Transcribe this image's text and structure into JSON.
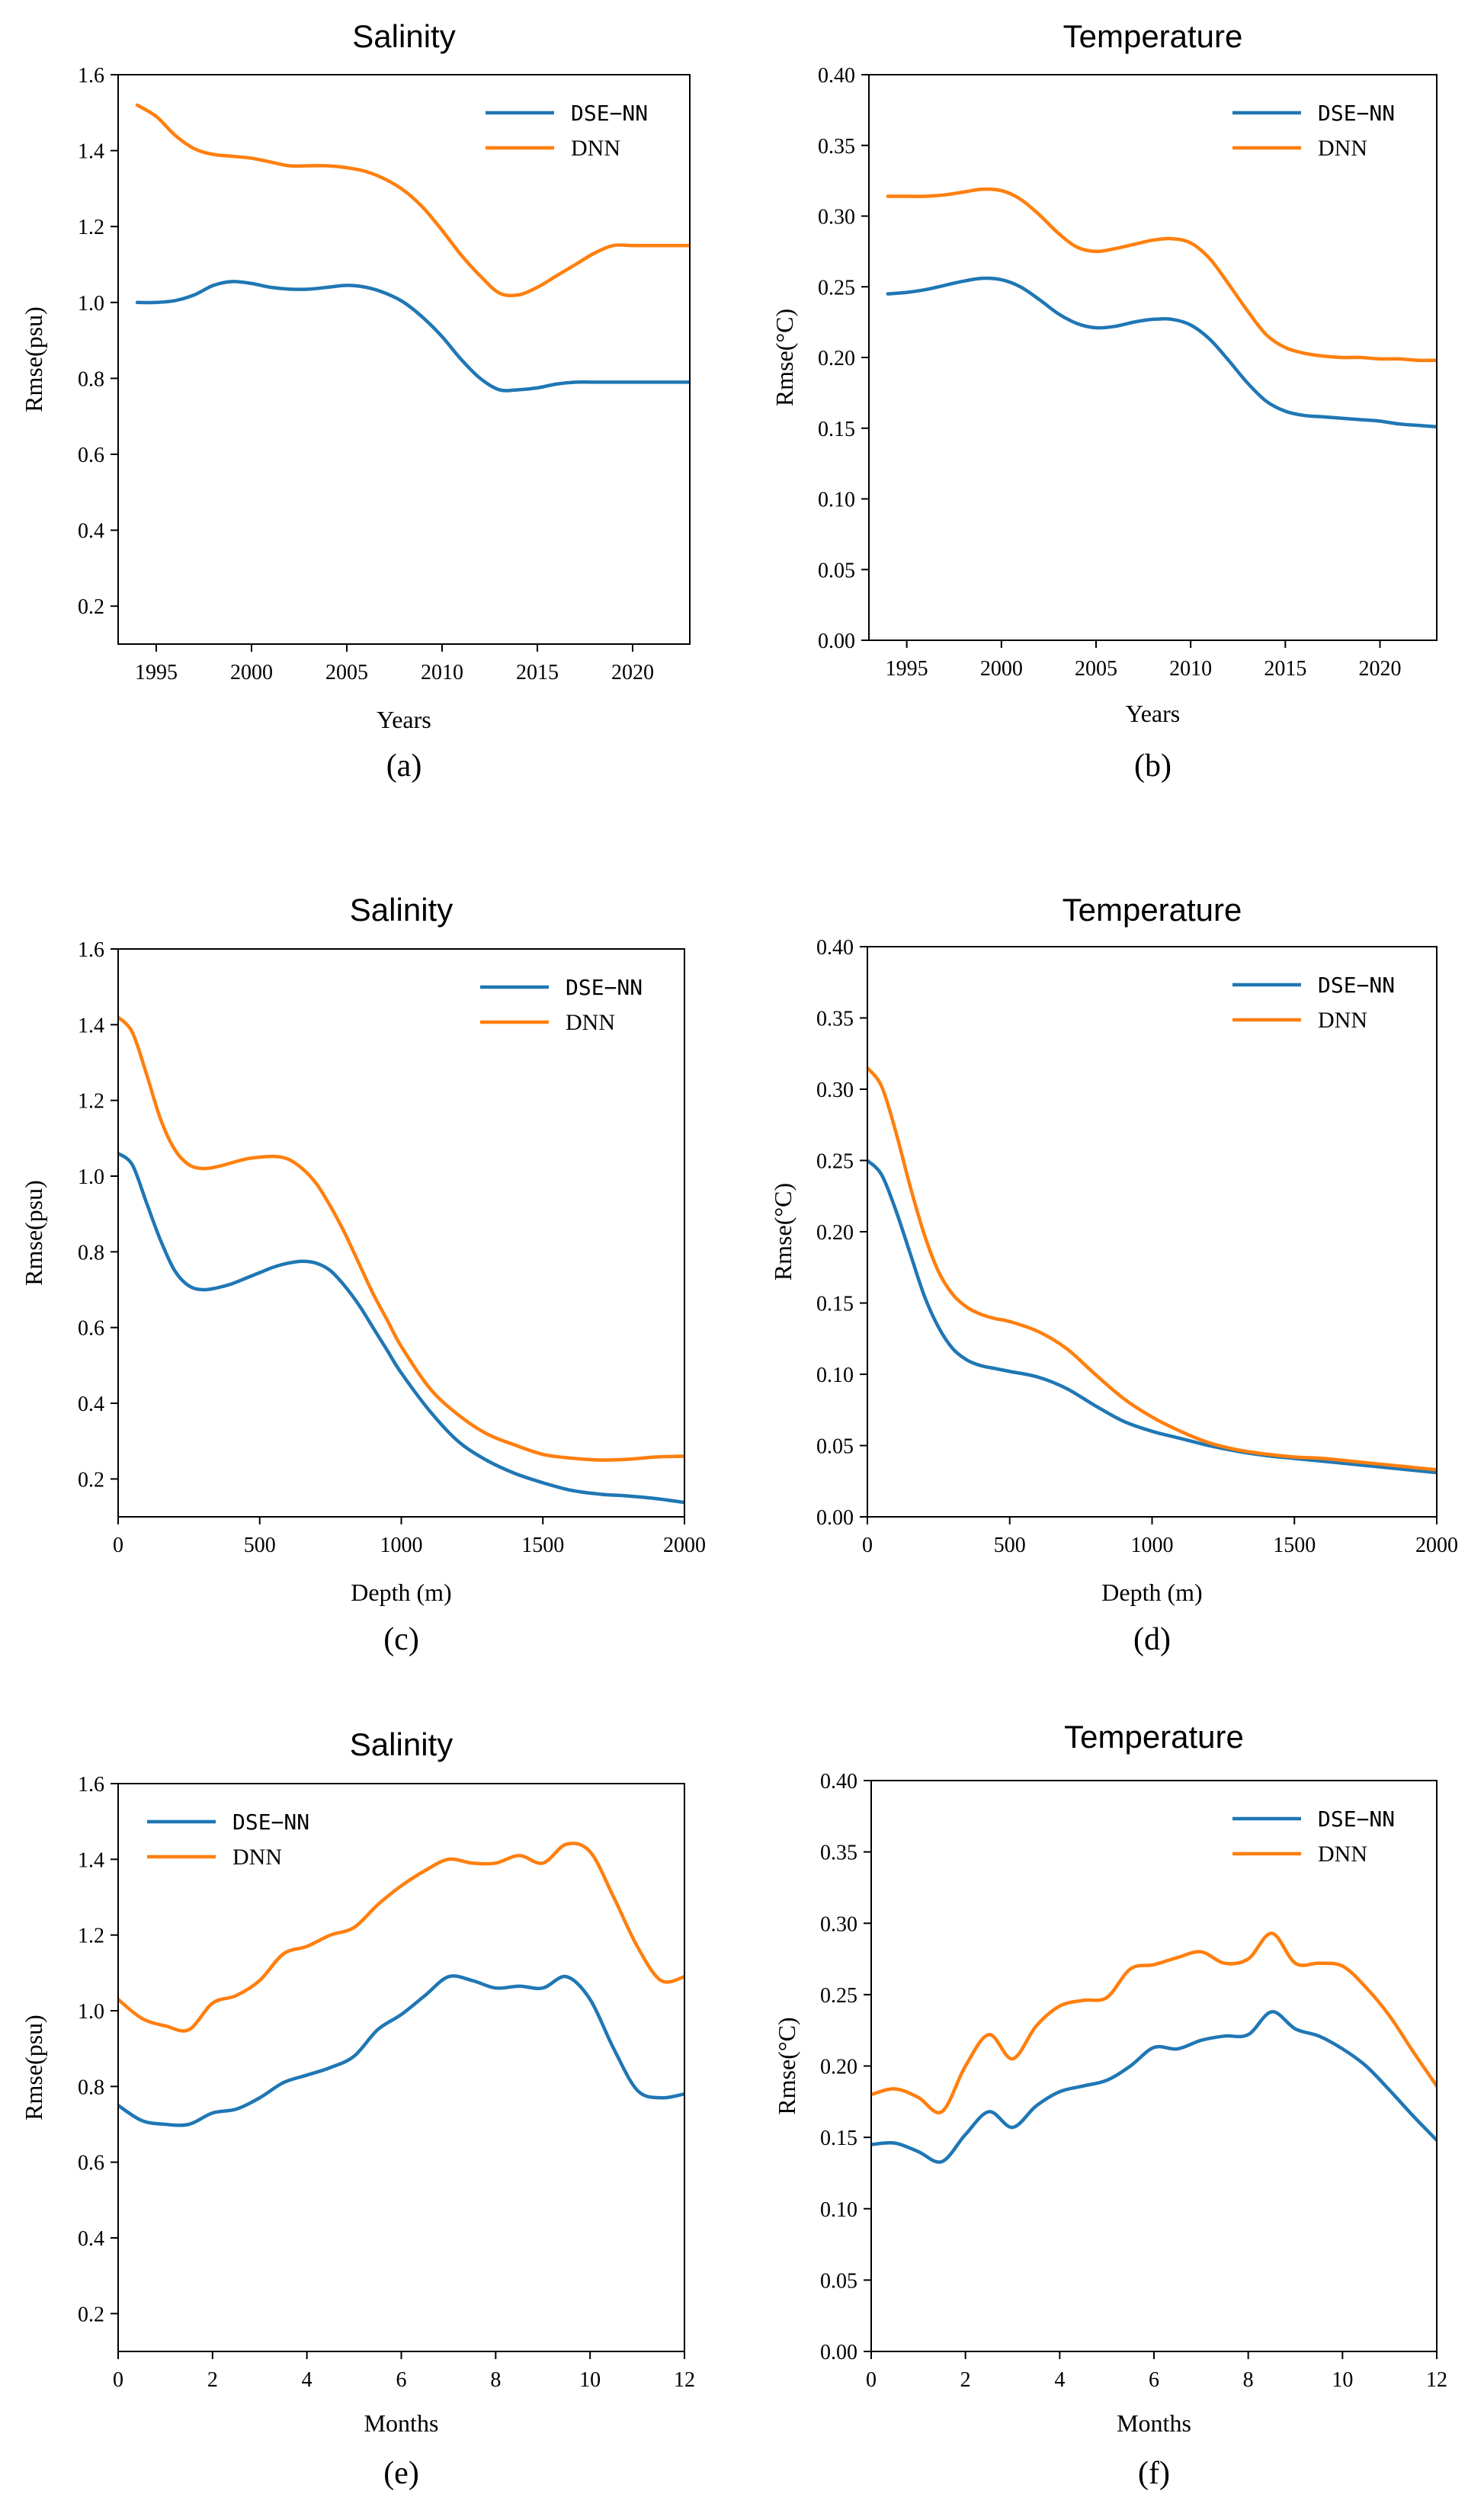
{
  "figure": {
    "captions": [
      "(a)",
      "(b)",
      "(c)",
      "(d)",
      "(e)",
      "(f)"
    ]
  },
  "colors": {
    "dse_nn": "#1f77b4",
    "dnn": "#ff7f0e"
  },
  "chart_data": [
    {
      "id": "a",
      "type": "line",
      "title": "Salinity",
      "xlabel": "Years",
      "ylabel": "Rmse(psu)",
      "caption": "(a)",
      "xlim": [
        1993,
        2023
      ],
      "ylim": [
        0.1,
        1.6
      ],
      "xticks": [
        1995,
        2000,
        2005,
        2010,
        2015,
        2020
      ],
      "yticks": [
        0.2,
        0.4,
        0.6,
        0.8,
        1.0,
        1.2,
        1.4,
        1.6
      ],
      "legend": {
        "position": "top-right",
        "entries": [
          "DSE−NN",
          "DNN"
        ]
      },
      "series": [
        {
          "name": "DSE-NN",
          "x": [
            1994,
            1995,
            1996,
            1997,
            1998,
            1999,
            2000,
            2001,
            2002,
            2003,
            2004,
            2005,
            2006,
            2007,
            2008,
            2009,
            2010,
            2011,
            2012,
            2013,
            2014,
            2015,
            2016,
            2017,
            2018,
            2019,
            2020,
            2021,
            2022,
            2023
          ],
          "values": [
            1.0,
            1.0,
            1.005,
            1.02,
            1.045,
            1.055,
            1.05,
            1.04,
            1.035,
            1.035,
            1.04,
            1.045,
            1.04,
            1.025,
            1.0,
            0.96,
            0.91,
            0.85,
            0.8,
            0.77,
            0.77,
            0.775,
            0.785,
            0.79,
            0.79,
            0.79,
            0.79,
            0.79,
            0.79,
            0.79
          ]
        },
        {
          "name": "DNN",
          "x": [
            1994,
            1995,
            1996,
            1997,
            1998,
            1999,
            2000,
            2001,
            2002,
            2003,
            2004,
            2005,
            2006,
            2007,
            2008,
            2009,
            2010,
            2011,
            2012,
            2013,
            2014,
            2015,
            2016,
            2017,
            2018,
            2019,
            2020,
            2021,
            2022,
            2023
          ],
          "values": [
            1.52,
            1.49,
            1.44,
            1.405,
            1.39,
            1.385,
            1.38,
            1.37,
            1.36,
            1.36,
            1.36,
            1.355,
            1.345,
            1.325,
            1.295,
            1.25,
            1.19,
            1.125,
            1.07,
            1.025,
            1.02,
            1.04,
            1.07,
            1.1,
            1.13,
            1.15,
            1.15,
            1.15,
            1.15,
            1.15
          ]
        }
      ]
    },
    {
      "id": "b",
      "type": "line",
      "title": "Temperature",
      "xlabel": "Years",
      "ylabel": "Rmse(°C)",
      "caption": "(b)",
      "xlim": [
        1993,
        2023
      ],
      "ylim": [
        0.0,
        0.4
      ],
      "xticks": [
        1995,
        2000,
        2005,
        2010,
        2015,
        2020
      ],
      "yticks": [
        0.0,
        0.05,
        0.1,
        0.15,
        0.2,
        0.25,
        0.3,
        0.35,
        0.4
      ],
      "legend": {
        "position": "top-right",
        "entries": [
          "DSE−NN",
          "DNN"
        ]
      },
      "series": [
        {
          "name": "DSE-NN",
          "x": [
            1994,
            1995,
            1996,
            1997,
            1998,
            1999,
            2000,
            2001,
            2002,
            2003,
            2004,
            2005,
            2006,
            2007,
            2008,
            2009,
            2010,
            2011,
            2012,
            2013,
            2014,
            2015,
            2016,
            2017,
            2018,
            2019,
            2020,
            2021,
            2022,
            2023
          ],
          "values": [
            0.245,
            0.246,
            0.248,
            0.251,
            0.254,
            0.256,
            0.255,
            0.25,
            0.241,
            0.231,
            0.224,
            0.221,
            0.222,
            0.225,
            0.227,
            0.227,
            0.223,
            0.213,
            0.198,
            0.182,
            0.169,
            0.162,
            0.159,
            0.158,
            0.157,
            0.156,
            0.155,
            0.153,
            0.152,
            0.151
          ]
        },
        {
          "name": "DNN",
          "x": [
            1994,
            1995,
            1996,
            1997,
            1998,
            1999,
            2000,
            2001,
            2002,
            2003,
            2004,
            2005,
            2006,
            2007,
            2008,
            2009,
            2010,
            2011,
            2012,
            2013,
            2014,
            2015,
            2016,
            2017,
            2018,
            2019,
            2020,
            2021,
            2022,
            2023
          ],
          "values": [
            0.314,
            0.314,
            0.314,
            0.315,
            0.317,
            0.319,
            0.318,
            0.312,
            0.301,
            0.288,
            0.278,
            0.275,
            0.277,
            0.28,
            0.283,
            0.284,
            0.281,
            0.27,
            0.252,
            0.233,
            0.216,
            0.207,
            0.203,
            0.201,
            0.2,
            0.2,
            0.199,
            0.199,
            0.198,
            0.198
          ]
        }
      ]
    },
    {
      "id": "c",
      "type": "line",
      "title": "Salinity",
      "xlabel": "Depth (m)",
      "ylabel": "Rmse(psu)",
      "caption": "(c)",
      "xlim": [
        0,
        2000
      ],
      "ylim": [
        0.1,
        1.6
      ],
      "xticks": [
        0,
        500,
        1000,
        1500,
        2000
      ],
      "yticks": [
        0.2,
        0.4,
        0.6,
        0.8,
        1.0,
        1.2,
        1.4,
        1.6
      ],
      "legend": {
        "position": "top-right",
        "entries": [
          "DSE−NN",
          "DNN"
        ]
      },
      "series": [
        {
          "name": "DSE-NN",
          "x": [
            0,
            50,
            100,
            150,
            200,
            250,
            300,
            350,
            400,
            450,
            500,
            550,
            600,
            650,
            700,
            750,
            800,
            850,
            900,
            950,
            1000,
            1100,
            1200,
            1300,
            1400,
            1500,
            1600,
            1700,
            1800,
            1900,
            2000
          ],
          "values": [
            1.06,
            1.03,
            0.93,
            0.83,
            0.75,
            0.71,
            0.7,
            0.705,
            0.715,
            0.73,
            0.745,
            0.76,
            0.77,
            0.775,
            0.77,
            0.75,
            0.71,
            0.66,
            0.6,
            0.54,
            0.48,
            0.38,
            0.3,
            0.25,
            0.215,
            0.19,
            0.17,
            0.16,
            0.155,
            0.148,
            0.138
          ]
        },
        {
          "name": "DNN",
          "x": [
            0,
            50,
            100,
            150,
            200,
            250,
            300,
            350,
            400,
            450,
            500,
            550,
            600,
            650,
            700,
            750,
            800,
            850,
            900,
            950,
            1000,
            1100,
            1200,
            1300,
            1400,
            1500,
            1600,
            1700,
            1800,
            1900,
            2000
          ],
          "values": [
            1.42,
            1.38,
            1.27,
            1.15,
            1.07,
            1.03,
            1.02,
            1.025,
            1.035,
            1.045,
            1.05,
            1.052,
            1.045,
            1.02,
            0.98,
            0.92,
            0.85,
            0.77,
            0.69,
            0.62,
            0.55,
            0.44,
            0.37,
            0.32,
            0.29,
            0.265,
            0.255,
            0.25,
            0.252,
            0.258,
            0.26
          ]
        }
      ]
    },
    {
      "id": "d",
      "type": "line",
      "title": "Temperature",
      "xlabel": "Depth (m)",
      "ylabel": "Rmse(°C)",
      "caption": "(d)",
      "xlim": [
        0,
        2000
      ],
      "ylim": [
        0.0,
        0.4
      ],
      "xticks": [
        0,
        500,
        1000,
        1500,
        2000
      ],
      "yticks": [
        0.0,
        0.05,
        0.1,
        0.15,
        0.2,
        0.25,
        0.3,
        0.35,
        0.4
      ],
      "legend": {
        "position": "top-right",
        "entries": [
          "DSE−NN",
          "DNN"
        ]
      },
      "series": [
        {
          "name": "DSE-NN",
          "x": [
            0,
            50,
            100,
            150,
            200,
            250,
            300,
            350,
            400,
            450,
            500,
            600,
            700,
            800,
            900,
            1000,
            1100,
            1200,
            1300,
            1400,
            1500,
            1600,
            1700,
            1800,
            1900,
            2000
          ],
          "values": [
            0.25,
            0.24,
            0.215,
            0.185,
            0.155,
            0.133,
            0.118,
            0.11,
            0.106,
            0.104,
            0.102,
            0.098,
            0.09,
            0.078,
            0.067,
            0.06,
            0.055,
            0.05,
            0.046,
            0.043,
            0.041,
            0.039,
            0.037,
            0.035,
            0.033,
            0.031
          ]
        },
        {
          "name": "DNN",
          "x": [
            0,
            50,
            100,
            150,
            200,
            250,
            300,
            350,
            400,
            450,
            500,
            600,
            700,
            800,
            900,
            1000,
            1100,
            1200,
            1300,
            1400,
            1500,
            1600,
            1700,
            1800,
            1900,
            2000
          ],
          "values": [
            0.315,
            0.302,
            0.27,
            0.232,
            0.198,
            0.172,
            0.156,
            0.147,
            0.142,
            0.139,
            0.137,
            0.13,
            0.118,
            0.1,
            0.083,
            0.07,
            0.06,
            0.052,
            0.047,
            0.044,
            0.042,
            0.041,
            0.039,
            0.037,
            0.035,
            0.033
          ]
        }
      ]
    },
    {
      "id": "e",
      "type": "line",
      "title": "Salinity",
      "xlabel": "Months",
      "ylabel": "Rmse(psu)",
      "caption": "(e)",
      "xlim": [
        0,
        12
      ],
      "ylim": [
        0.1,
        1.6
      ],
      "xticks": [
        0,
        2,
        4,
        6,
        8,
        10,
        12
      ],
      "yticks": [
        0.2,
        0.4,
        0.6,
        0.8,
        1.0,
        1.2,
        1.4,
        1.6
      ],
      "legend": {
        "position": "top-left",
        "entries": [
          "DSE−NN",
          "DNN"
        ]
      },
      "series": [
        {
          "name": "DSE-NN",
          "x": [
            0,
            0.5,
            1,
            1.5,
            2,
            2.5,
            3,
            3.5,
            4,
            4.5,
            5,
            5.5,
            6,
            6.5,
            7,
            7.5,
            8,
            8.5,
            9,
            9.5,
            10,
            10.5,
            11,
            11.5,
            12
          ],
          "values": [
            0.75,
            0.71,
            0.7,
            0.7,
            0.73,
            0.74,
            0.77,
            0.81,
            0.83,
            0.85,
            0.88,
            0.95,
            0.99,
            1.04,
            1.09,
            1.08,
            1.06,
            1.065,
            1.06,
            1.09,
            1.03,
            0.9,
            0.79,
            0.77,
            0.78
          ]
        },
        {
          "name": "DNN",
          "x": [
            0,
            0.5,
            1,
            1.5,
            2,
            2.5,
            3,
            3.5,
            4,
            4.5,
            5,
            5.5,
            6,
            6.5,
            7,
            7.5,
            8,
            8.5,
            9,
            9.5,
            10,
            10.5,
            11,
            11.5,
            12
          ],
          "values": [
            1.03,
            0.98,
            0.96,
            0.95,
            1.02,
            1.04,
            1.08,
            1.15,
            1.17,
            1.2,
            1.22,
            1.28,
            1.33,
            1.37,
            1.4,
            1.39,
            1.39,
            1.41,
            1.39,
            1.44,
            1.42,
            1.3,
            1.17,
            1.08,
            1.09
          ]
        }
      ]
    },
    {
      "id": "f",
      "type": "line",
      "title": "Temperature",
      "xlabel": "Months",
      "ylabel": "Rmse(°C)",
      "caption": "(f)",
      "xlim": [
        0,
        12
      ],
      "ylim": [
        0.0,
        0.4
      ],
      "xticks": [
        0,
        2,
        4,
        6,
        8,
        10,
        12
      ],
      "yticks": [
        0.0,
        0.05,
        0.1,
        0.15,
        0.2,
        0.25,
        0.3,
        0.35,
        0.4
      ],
      "legend": {
        "position": "top-right",
        "entries": [
          "DSE−NN",
          "DNN"
        ]
      },
      "series": [
        {
          "name": "DSE-NN",
          "x": [
            0,
            0.5,
            1,
            1.5,
            2,
            2.5,
            3,
            3.5,
            4,
            4.5,
            5,
            5.5,
            6,
            6.5,
            7,
            7.5,
            8,
            8.5,
            9,
            9.5,
            10,
            10.5,
            11,
            11.5,
            12
          ],
          "values": [
            0.145,
            0.146,
            0.14,
            0.133,
            0.152,
            0.168,
            0.157,
            0.172,
            0.182,
            0.186,
            0.19,
            0.2,
            0.213,
            0.212,
            0.218,
            0.221,
            0.222,
            0.238,
            0.226,
            0.221,
            0.212,
            0.2,
            0.183,
            0.165,
            0.148
          ]
        },
        {
          "name": "DNN",
          "x": [
            0,
            0.5,
            1,
            1.5,
            2,
            2.5,
            3,
            3.5,
            4,
            4.5,
            5,
            5.5,
            6,
            6.5,
            7,
            7.5,
            8,
            8.5,
            9,
            9.5,
            10,
            10.5,
            11,
            11.5,
            12
          ],
          "values": [
            0.18,
            0.184,
            0.178,
            0.168,
            0.2,
            0.222,
            0.205,
            0.228,
            0.242,
            0.246,
            0.248,
            0.268,
            0.271,
            0.276,
            0.28,
            0.272,
            0.275,
            0.293,
            0.272,
            0.272,
            0.27,
            0.255,
            0.235,
            0.21,
            0.186
          ]
        }
      ]
    }
  ]
}
